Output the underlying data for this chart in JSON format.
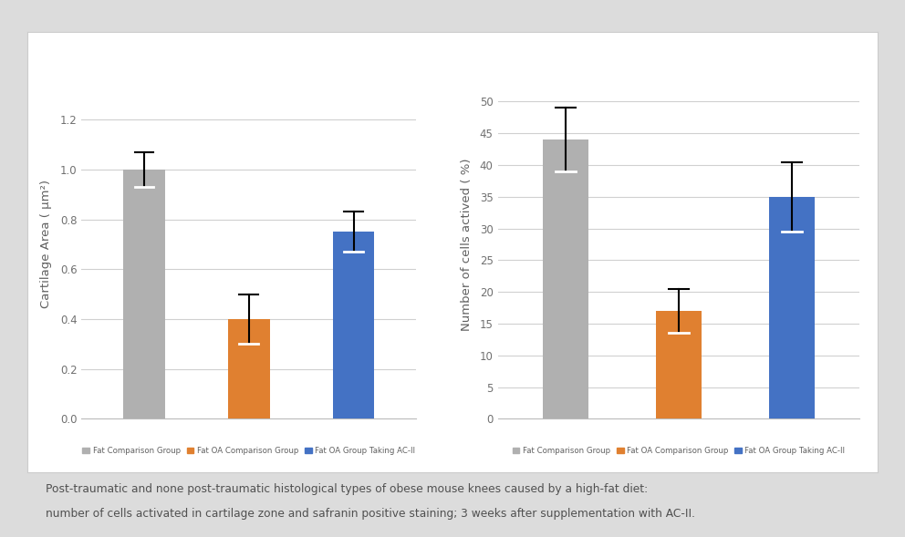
{
  "chart1": {
    "ylabel": "Cartilage Area ( μm²)",
    "values": [
      1.0,
      0.4,
      0.75
    ],
    "errors": [
      0.07,
      0.1,
      0.08
    ],
    "ylim": [
      0,
      1.4
    ],
    "yticks": [
      0,
      0.2,
      0.4,
      0.6,
      0.8,
      1.0,
      1.2
    ],
    "colors": [
      "#b0b0b0",
      "#e08030",
      "#4472c4"
    ]
  },
  "chart2": {
    "ylabel": "Number of cells actived ( %)",
    "values": [
      44,
      17,
      35
    ],
    "errors": [
      5,
      3.5,
      5.5
    ],
    "ylim": [
      0,
      55
    ],
    "yticks": [
      0,
      5,
      10,
      15,
      20,
      25,
      30,
      35,
      40,
      45,
      50
    ],
    "colors": [
      "#b0b0b0",
      "#e08030",
      "#4472c4"
    ]
  },
  "legend_labels": [
    "Fat Comparison Group",
    "Fat OA Comparison Group",
    "Fat OA Group Taking AC-II"
  ],
  "legend_colors": [
    "#b0b0b0",
    "#e08030",
    "#4472c4"
  ],
  "caption_line1": "Post-traumatic and none post-traumatic histological types of obese mouse knees caused by a high-fat diet:",
  "caption_line2": "number of cells activated in cartilage zone and safranin positive staining; 3 weeks after supplementation with AC-II.",
  "bg_color": "#dcdcdc",
  "panel_color": "#ffffff",
  "card_color": "#ffffff",
  "grid_color": "#d0d0d0",
  "bar_width": 0.4,
  "font_color": "#606060",
  "tick_color": "#707070"
}
